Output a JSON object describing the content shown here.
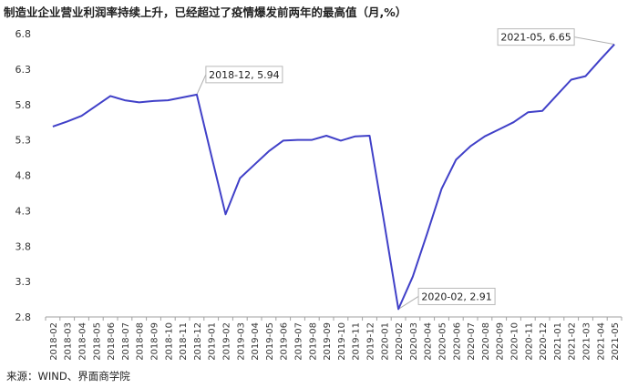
{
  "chart_data": {
    "type": "line",
    "title": "制造业企业营业利润率持续上升，已经超过了疫情爆发前两年的最高值（月,%）",
    "source": "来源：WIND、界面商学院",
    "xlabel": "",
    "ylabel": "",
    "ylim": [
      2.8,
      6.8
    ],
    "yticks": [
      "2.8",
      "3.3",
      "3.8",
      "4.3",
      "4.8",
      "5.3",
      "5.8",
      "6.3",
      "6.8"
    ],
    "grid": false,
    "legend": "none",
    "line_color": "#4040c8",
    "x": [
      "2018-02",
      "2018-03",
      "2018-04",
      "2018-05",
      "2018-06",
      "2018-07",
      "2018-08",
      "2018-09",
      "2018-10",
      "2018-11",
      "2018-12",
      "2019-01",
      "2019-02",
      "2019-03",
      "2019-04",
      "2019-05",
      "2019-06",
      "2019-07",
      "2019-08",
      "2019-09",
      "2019-10",
      "2019-11",
      "2019-12",
      "2020-01",
      "2020-02",
      "2020-03",
      "2020-04",
      "2020-05",
      "2020-06",
      "2020-07",
      "2020-08",
      "2020-09",
      "2020-10",
      "2020-11",
      "2020-12",
      "2021-01",
      "2021-02",
      "2021-03",
      "2021-04",
      "2021-05"
    ],
    "series": [
      {
        "values": [
          5.49,
          5.56,
          5.64,
          5.78,
          5.92,
          5.86,
          5.83,
          5.85,
          5.86,
          5.9,
          5.94,
          5.09,
          4.25,
          4.76,
          4.95,
          5.14,
          5.29,
          5.3,
          5.3,
          5.36,
          5.29,
          5.35,
          5.36,
          4.15,
          2.91,
          3.37,
          3.98,
          4.61,
          5.02,
          5.21,
          5.35,
          5.45,
          5.55,
          5.69,
          5.71,
          5.93,
          6.15,
          6.2,
          6.43,
          6.65
        ]
      }
    ],
    "annotations": [
      {
        "x": "2018-12",
        "text": "2018-12, 5.94"
      },
      {
        "x": "2020-02",
        "text": "2020-02, 2.91"
      },
      {
        "x": "2021-05",
        "text": "2021-05, 6.65"
      }
    ]
  }
}
